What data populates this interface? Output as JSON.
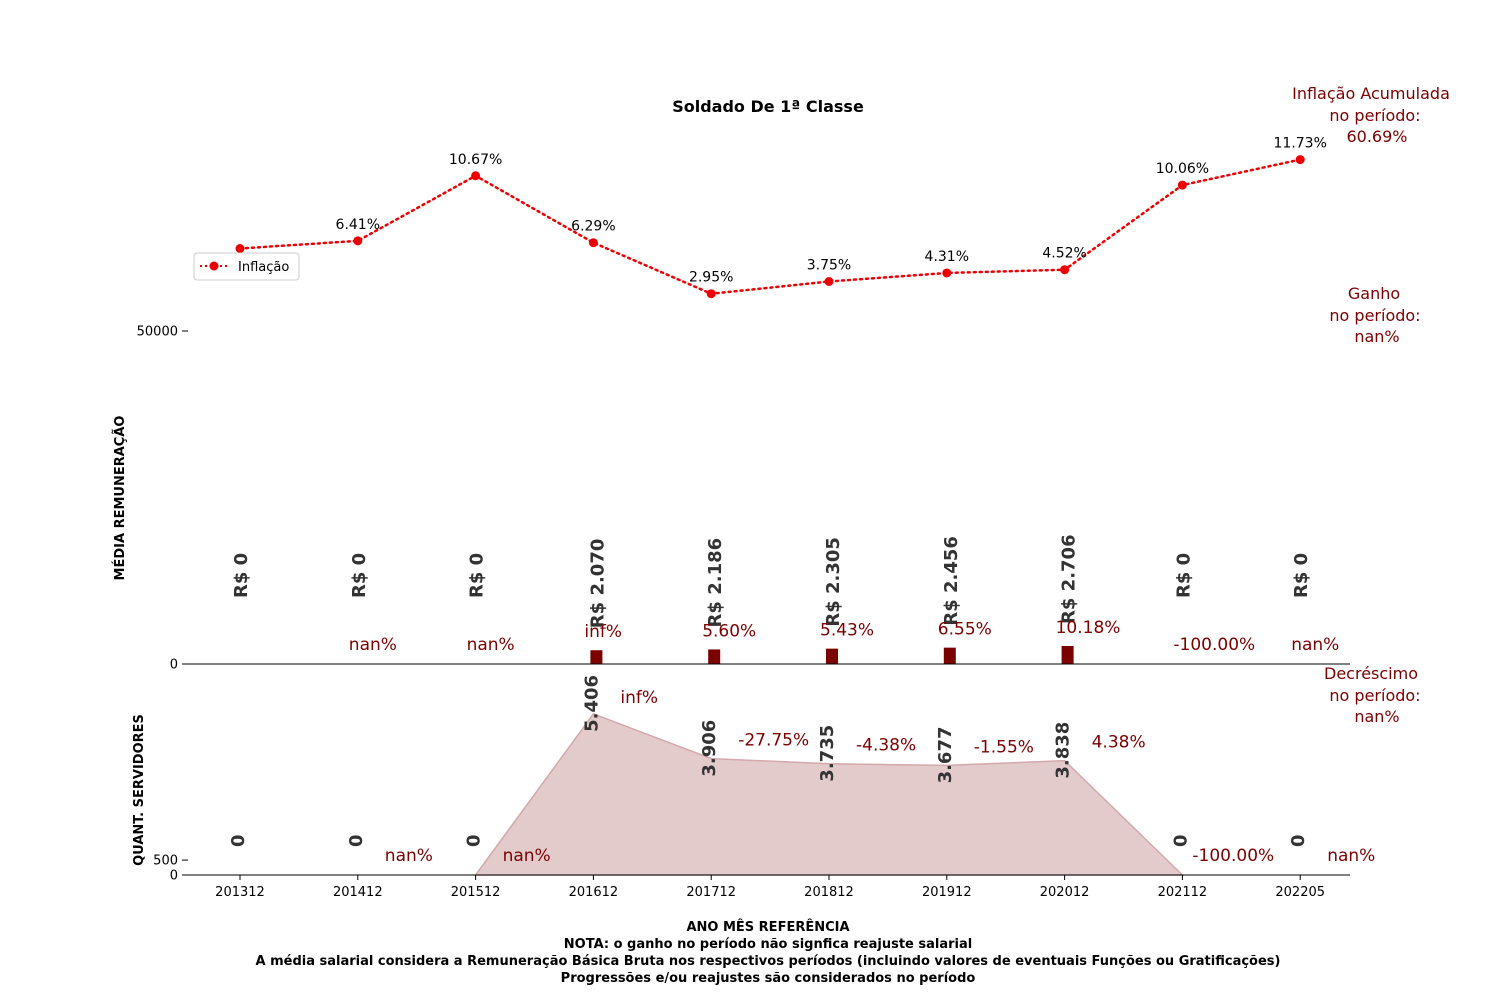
{
  "chart_data": {
    "type": "bar",
    "title": "Soldado De 1ª Classe",
    "categories": [
      "201312",
      "201412",
      "201512",
      "201612",
      "201712",
      "201812",
      "201912",
      "202012",
      "202112",
      "202205"
    ],
    "xlabel": "ANO MÊS REFERÊNCIA",
    "notes": [
      "NOTA: o ganho no período não signfica reajuste salarial",
      "A média salarial considera a Remuneração Básica Bruta nos respectivos períodos (incluindo valores de eventuais Funções ou Gratificações)",
      "Progressões e/ou reajustes são considerados no período"
    ],
    "inflation": {
      "legend": "Inflação",
      "color": "#ee0000",
      "values": [
        5.91,
        6.41,
        10.67,
        6.29,
        2.95,
        3.75,
        4.31,
        4.52,
        10.06,
        11.73
      ],
      "labels": [
        "",
        "6.41%",
        "10.67%",
        "6.29%",
        "2.95%",
        "3.75%",
        "4.31%",
        "4.52%",
        "10.06%",
        "11.73%"
      ]
    },
    "salary": {
      "ylabel": "MÉDIA REMUNERAÇÃO",
      "yticks": [
        {
          "value": 0,
          "label": "0"
        },
        {
          "value": 50000,
          "label": "50000"
        }
      ],
      "ylim": [
        0,
        55000
      ],
      "color": "#7b0000",
      "values": [
        0,
        0,
        0,
        2070,
        2186,
        2305,
        2456,
        2706,
        0,
        0
      ],
      "value_labels": [
        "R$ 0",
        "R$ 0",
        "R$ 0",
        "R$ 2.070",
        "R$ 2.186",
        "R$ 2.305",
        "R$ 2.456",
        "R$ 2.706",
        "R$ 0",
        "R$ 0"
      ],
      "change_labels": [
        "",
        "nan%",
        "nan%",
        "inf%",
        "5.60%",
        "5.43%",
        "6.55%",
        "10.18%",
        "-100.00%",
        "nan%"
      ]
    },
    "staff": {
      "ylabel": "QUANT. SERVIDORES",
      "yticks": [
        {
          "value": 0,
          "label": "0"
        },
        {
          "value": 500,
          "label": "500"
        }
      ],
      "ylim": [
        0,
        5800
      ],
      "fill_color": "#e3cbcc",
      "line_color": "#d4a9ab",
      "values": [
        0,
        0,
        0,
        5406,
        3906,
        3735,
        3677,
        3838,
        0,
        0
      ],
      "value_labels": [
        "0",
        "0",
        "0",
        "5.406",
        "3.906",
        "3.735",
        "3.677",
        "3.838",
        "0",
        "0"
      ],
      "change_labels": [
        "",
        "nan%",
        "nan%",
        "inf%",
        "-27.75%",
        "-4.38%",
        "-1.55%",
        "4.38%",
        "-100.00%",
        "nan%"
      ]
    },
    "side_notes": [
      [
        "Inflação Acumulada",
        "no período:",
        "60.69%"
      ],
      [
        "Ganho",
        "no período:",
        "nan%"
      ],
      [
        "Decréscimo",
        "no período:",
        "nan%"
      ]
    ]
  }
}
